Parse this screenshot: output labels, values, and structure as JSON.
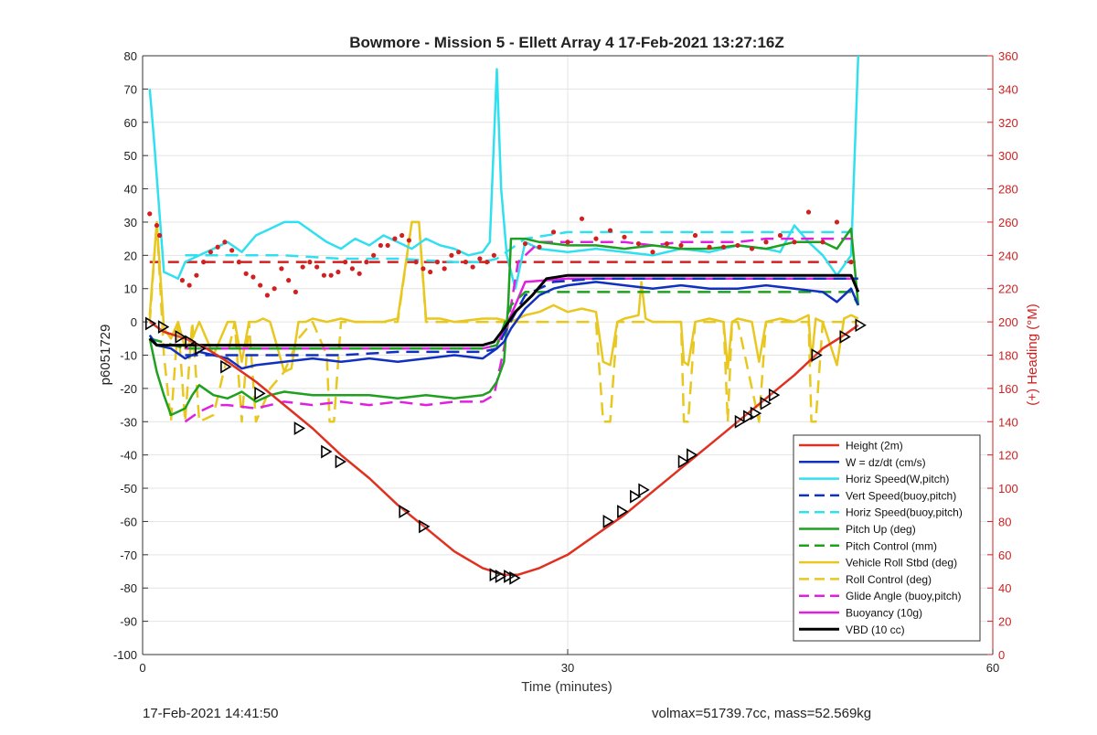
{
  "chart_data": {
    "type": "line",
    "title": "Bowmore - Mission 5 - Ellett Array 4 17-Feb-2021 13:27:16Z",
    "xlabel": "Time (minutes)",
    "ylabel": "p6051729",
    "ylabel_right": "(+) Heading (°M)",
    "xlim": [
      0,
      60
    ],
    "ylim": [
      -100,
      80
    ],
    "ylim_right": [
      0,
      360
    ],
    "x_ticks": [
      0,
      30,
      60
    ],
    "y_ticks": [
      -100,
      -90,
      -80,
      -70,
      -60,
      -50,
      -40,
      -30,
      -20,
      -10,
      0,
      10,
      20,
      30,
      40,
      50,
      60,
      70,
      80
    ],
    "y_ticks_right": [
      0,
      20,
      40,
      60,
      80,
      100,
      120,
      140,
      160,
      180,
      200,
      220,
      240,
      260,
      280,
      300,
      320,
      340,
      360
    ],
    "grid": true,
    "legend_position": "bottom-right",
    "series": [
      {
        "name": "Height (2m)",
        "color": "#e03020",
        "dash": false,
        "width": 2.5,
        "x": [
          0.5,
          1.5,
          3,
          4.5,
          6,
          8,
          10,
          12,
          14,
          16,
          18,
          20,
          22,
          24,
          25.5,
          26.5,
          28,
          30,
          32,
          34,
          36,
          38,
          40,
          42,
          44,
          46,
          48,
          49.5,
          50.5
        ],
        "y": [
          0,
          -3,
          -5,
          -8,
          -12,
          -18,
          -25,
          -32,
          -40,
          -47,
          -55,
          -62,
          -69,
          -74,
          -76,
          -76,
          -74,
          -70,
          -64,
          -58,
          -51,
          -44,
          -37,
          -30,
          -23,
          -16,
          -8,
          -4,
          -1
        ]
      },
      {
        "name": "W = dz/dt (cm/s)",
        "color": "#1030c0",
        "dash": false,
        "width": 2.5,
        "x": [
          0.5,
          1,
          2,
          3,
          4,
          5,
          6,
          7,
          8,
          10,
          12,
          14,
          16,
          18,
          20,
          22,
          24,
          25,
          25.5,
          26,
          27,
          28,
          29,
          30,
          32,
          34,
          36,
          38,
          40,
          42,
          44,
          46,
          48,
          49,
          50,
          50.5
        ],
        "y": [
          -4,
          -7,
          -8,
          -11,
          -9,
          -10,
          -11,
          -14,
          -13,
          -12,
          -11,
          -12,
          -11,
          -12,
          -11,
          -10,
          -11,
          -8,
          -6,
          -2,
          4,
          8,
          10,
          11,
          12,
          11,
          10,
          11,
          10,
          10,
          11,
          10,
          9,
          6,
          10,
          5
        ]
      },
      {
        "name": "Horiz Speed(W,pitch)",
        "color": "#30e0f0",
        "dash": false,
        "width": 2.5,
        "x": [
          0.5,
          0.8,
          1.5,
          2.5,
          3,
          4,
          5,
          6,
          7,
          8,
          9,
          10,
          11,
          12,
          13,
          14,
          15,
          16,
          17,
          18,
          19,
          20,
          21,
          22,
          23,
          24,
          24.5,
          25,
          25.3,
          25.7,
          26.3,
          27,
          28,
          30,
          32,
          34,
          36,
          38,
          40,
          42,
          44,
          45,
          46,
          47,
          48,
          49,
          50,
          50.5
        ],
        "y": [
          70,
          55,
          15,
          13,
          18,
          20,
          22,
          24,
          21,
          26,
          28,
          30,
          30,
          27,
          24,
          22,
          25,
          23,
          26,
          24,
          22,
          25,
          23,
          22,
          20,
          21,
          24,
          76,
          40,
          20,
          10,
          24,
          22,
          21,
          22,
          21,
          20,
          22,
          21,
          23,
          22,
          21,
          29,
          24,
          20,
          14,
          20,
          80
        ]
      },
      {
        "name": "Vert Speed(buoy,pitch)",
        "color": "#1030c0",
        "dash": true,
        "width": 2.5,
        "x": [
          3,
          6,
          10,
          14,
          18,
          22,
          24,
          25,
          25.7,
          27,
          29,
          32,
          36,
          40,
          44,
          48,
          50.5
        ],
        "y": [
          -10,
          -10,
          -10,
          -10,
          -9,
          -9,
          -9,
          -8,
          -2,
          8,
          12,
          13,
          13,
          13,
          13,
          13,
          13
        ]
      },
      {
        "name": "Horiz Speed(buoy,pitch)",
        "color": "#30e0f0",
        "dash": true,
        "width": 2.5,
        "x": [
          3,
          6,
          10,
          14,
          18,
          22,
          24,
          25,
          26,
          27,
          30,
          34,
          38,
          42,
          46,
          50
        ],
        "y": [
          20,
          20,
          20,
          19,
          19,
          18,
          18,
          19,
          22,
          25,
          27,
          27,
          27,
          27,
          27,
          27
        ]
      },
      {
        "name": "Pitch Up (deg)",
        "color": "#20a020",
        "dash": false,
        "width": 2.5,
        "x": [
          0.5,
          1,
          1.5,
          2,
          2.5,
          3,
          3.5,
          4,
          5,
          6,
          7,
          8,
          9,
          10,
          12,
          14,
          16,
          18,
          20,
          22,
          24,
          24.5,
          25,
          25.5,
          25.8,
          26,
          27,
          28,
          30,
          32,
          34,
          36,
          38,
          40,
          42,
          44,
          46,
          48,
          49,
          50,
          50.5
        ],
        "y": [
          -5,
          -15,
          -22,
          -28,
          -27,
          -26,
          -22,
          -19,
          -22,
          -23,
          -21,
          -24,
          -22,
          -21,
          -22,
          -22,
          -22,
          -23,
          -22,
          -23,
          -22,
          -21,
          -18,
          -12,
          5,
          25,
          25,
          24,
          23,
          23,
          22,
          23,
          22,
          22,
          23,
          22,
          24,
          24,
          22,
          28,
          5
        ]
      },
      {
        "name": "Pitch Control (mm)",
        "color": "#20a020",
        "dash": true,
        "width": 2.5,
        "x": [
          0.5,
          3,
          6,
          10,
          14,
          18,
          22,
          24,
          25,
          26,
          27,
          30,
          34,
          38,
          42,
          46,
          50,
          50.5
        ],
        "y": [
          -5,
          -8,
          -8,
          -8,
          -8,
          -8,
          -8,
          -8,
          -7,
          5,
          9,
          9,
          9,
          9,
          9,
          9,
          9,
          5
        ]
      },
      {
        "name": "Vehicle Roll Stbd (deg)",
        "color": "#e8c820",
        "dash": false,
        "width": 2.5,
        "x": [
          0.5,
          1,
          1.5,
          2,
          2.5,
          3,
          3.5,
          4,
          5,
          6,
          6.5,
          7,
          7.5,
          8,
          8.5,
          9,
          10,
          10.5,
          11,
          11.5,
          12,
          13,
          14,
          15,
          17,
          18,
          19,
          19.5,
          20,
          21,
          22,
          24,
          25,
          26,
          27,
          28,
          29,
          30,
          31,
          32,
          32.5,
          33,
          33.5,
          34,
          35,
          35.2,
          35.5,
          36,
          38,
          38.2,
          38.5,
          39,
          40,
          41,
          41.3,
          41.6,
          42,
          43,
          43.5,
          44,
          45,
          46,
          47,
          47.2,
          47.5,
          48,
          49,
          49.5,
          50,
          50.5
        ],
        "y": [
          2,
          30,
          -2,
          -5,
          0,
          -8,
          -5,
          0,
          -10,
          0,
          0,
          -12,
          0,
          0,
          1,
          0,
          -15,
          -14,
          0,
          0,
          1,
          0,
          1,
          0,
          0,
          1,
          30,
          30,
          1,
          1,
          0,
          1,
          1,
          0,
          2,
          3,
          5,
          3,
          4,
          3,
          -12,
          -13,
          0,
          1,
          2,
          12,
          1,
          0,
          0,
          -12,
          -13,
          0,
          1,
          0,
          -14,
          0,
          1,
          0,
          -12,
          0,
          1,
          0,
          2,
          -12,
          1,
          0,
          -13,
          1,
          2,
          1
        ]
      },
      {
        "name": "Roll Control (deg)",
        "color": "#e8c820",
        "dash": true,
        "width": 2.5,
        "x": [
          0.5,
          1,
          1.5,
          2,
          2.5,
          3,
          3.5,
          4,
          5,
          6,
          6.5,
          7,
          7.5,
          8,
          9,
          10,
          11,
          12,
          13,
          13.2,
          13.5,
          14,
          16,
          18,
          19,
          19.5,
          20,
          22,
          24,
          26,
          28,
          30,
          32,
          32.5,
          33,
          33.5,
          34,
          36,
          38,
          38.2,
          38.5,
          39,
          41,
          41.3,
          41.6,
          42,
          43.5,
          44,
          46,
          47,
          47.2,
          47.5,
          48,
          50,
          50.5
        ],
        "y": [
          0,
          30,
          -10,
          -30,
          0,
          -30,
          0,
          -30,
          -28,
          -10,
          0,
          -30,
          0,
          -30,
          -20,
          -15,
          -5,
          0,
          -10,
          -30,
          -30,
          0,
          0,
          0,
          30,
          30,
          0,
          0,
          0,
          0,
          0,
          0,
          0,
          -30,
          -30,
          0,
          0,
          0,
          0,
          -30,
          -30,
          0,
          0,
          -30,
          0,
          0,
          -30,
          0,
          0,
          0,
          -30,
          -30,
          0,
          0,
          0
        ]
      },
      {
        "name": "Glide Angle (buoy,pitch)",
        "color": "#e020e0",
        "dash": true,
        "width": 2.5,
        "x": [
          3,
          4,
          5,
          6,
          8,
          10,
          12,
          14,
          16,
          18,
          20,
          22,
          24,
          24.8,
          25.5,
          26.5,
          28,
          30,
          32,
          34,
          36,
          38,
          40,
          42,
          44,
          46,
          48,
          50
        ],
        "y": [
          -30,
          -27,
          -25,
          -25,
          -26,
          -24,
          -25,
          -24,
          -25,
          -24,
          -25,
          -24,
          -24,
          -22,
          -8,
          18,
          24,
          24,
          24,
          24,
          23,
          24,
          24,
          24,
          25,
          25,
          25,
          25
        ]
      },
      {
        "name": "Buoyancy (10g)",
        "color": "#e020e0",
        "dash": false,
        "width": 2.5,
        "x": [
          3,
          6,
          10,
          14,
          18,
          22,
          24,
          25,
          26,
          27,
          30,
          34,
          38,
          42,
          46,
          50
        ],
        "y": [
          -8,
          -8,
          -8,
          -8,
          -8,
          -8,
          -8,
          -7,
          2,
          12,
          13,
          13,
          13,
          13,
          13,
          13
        ]
      },
      {
        "name": "VBD (10 cc)",
        "color": "#000000",
        "dash": false,
        "width": 3,
        "x": [
          0.5,
          1,
          3,
          6,
          10,
          14,
          18,
          22,
          24,
          24.8,
          25.5,
          26.3,
          27.5,
          28.5,
          30,
          34,
          38,
          42,
          46,
          50,
          50.5
        ],
        "y": [
          -5,
          -7,
          -7,
          -7,
          -7,
          -7,
          -7,
          -7,
          -7,
          -6,
          -2,
          3,
          8,
          13,
          14,
          14,
          14,
          14,
          14,
          14,
          9
        ]
      }
    ],
    "heading_dots": {
      "color": "#d02020",
      "x": [
        0.5,
        1,
        1.2,
        2.8,
        3.3,
        3.8,
        4.3,
        4.8,
        5.3,
        5.8,
        6.3,
        6.8,
        7.3,
        7.8,
        8.3,
        8.8,
        9.3,
        9.8,
        10.3,
        10.8,
        11.3,
        11.8,
        12.3,
        12.8,
        13.3,
        13.8,
        14.3,
        14.8,
        15.3,
        15.8,
        16.3,
        16.8,
        17.3,
        17.8,
        18.3,
        18.8,
        19.3,
        19.8,
        20.3,
        20.8,
        21.3,
        21.8,
        22.3,
        22.8,
        23.3,
        23.8,
        24.3,
        24.8,
        27,
        28,
        29,
        30,
        31,
        32,
        33,
        34,
        35,
        36,
        37,
        38,
        39,
        40,
        41,
        42,
        43,
        44,
        45,
        46,
        47,
        48,
        49,
        50
      ],
      "y": [
        265,
        258,
        252,
        225,
        222,
        228,
        236,
        242,
        245,
        248,
        243,
        236,
        229,
        227,
        222,
        216,
        220,
        232,
        225,
        218,
        233,
        236,
        233,
        228,
        228,
        230,
        236,
        232,
        229,
        236,
        240,
        246,
        246,
        250,
        252,
        249,
        236,
        232,
        230,
        236,
        232,
        240,
        242,
        236,
        233,
        238,
        236,
        240,
        247,
        245,
        254,
        248,
        262,
        250,
        255,
        251,
        247,
        242,
        247,
        246,
        252,
        245,
        245,
        246,
        244,
        248,
        252,
        248,
        266,
        248,
        260,
        236
      ]
    },
    "heading_ref": {
      "color": "#d02020",
      "value_right": 236
    },
    "triangle_markers": {
      "x": [
        0.5,
        1.4,
        2.6,
        3.3,
        4,
        5.8,
        8.2,
        11,
        12.9,
        13.9,
        18.4,
        19.8,
        24.8,
        25.2,
        25.8,
        26.2,
        32.8,
        33.8,
        34.7,
        35.3,
        38.1,
        38.7,
        42.1,
        42.7,
        43.2,
        43.9,
        44.5,
        47.5,
        49.5,
        50.6
      ],
      "y": [
        -0.5,
        -1.5,
        -4.5,
        -6,
        -8,
        -13.5,
        -21.5,
        -32,
        -39,
        -42,
        -57,
        -61.5,
        -76,
        -76.5,
        -76.5,
        -77,
        -60,
        -57,
        -52.5,
        -50.5,
        -42,
        -40,
        -30,
        -28.5,
        -27.5,
        -24.5,
        -22,
        -10,
        -4.5,
        -1
      ]
    }
  },
  "footer": {
    "left_text": "17-Feb-2021 14:41:50",
    "right_text": "volmax=51739.7cc, mass=52.569kg"
  }
}
